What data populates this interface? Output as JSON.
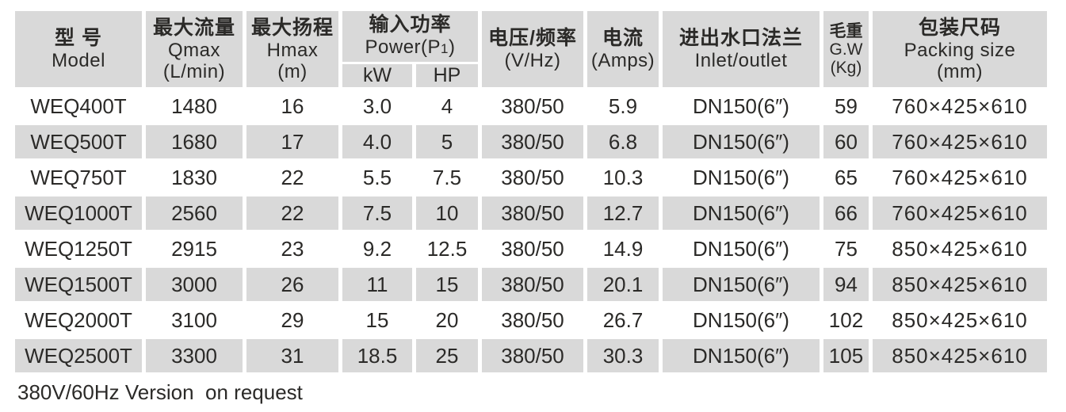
{
  "page": {
    "background_color": "#ffffff",
    "stripe_color": "#d9d9d9",
    "text_color": "#2b2a28"
  },
  "table": {
    "header": {
      "model": {
        "zh": "型 号",
        "en": "Model"
      },
      "qmax": {
        "zh": "最大流量",
        "en": "Qmax",
        "unit": "(L/min)"
      },
      "hmax": {
        "zh": "最大扬程",
        "en": "Hmax",
        "unit": "(m)"
      },
      "power": {
        "zh": "输入功率",
        "en_prefix": "Power(P",
        "en_sub": "1",
        "en_suffix": ")",
        "kw": "kW",
        "hp": "HP"
      },
      "voltage": {
        "zh": "电压/频率",
        "unit": "(V/Hz)"
      },
      "current": {
        "zh": "电流",
        "unit": "(Amps)"
      },
      "inlet": {
        "zh": "进出水口法兰",
        "en": "Inlet/outlet"
      },
      "gw": {
        "zh": "毛重",
        "en": "G.W",
        "unit": "(Kg)"
      },
      "packing": {
        "zh": "包装尺码",
        "en": "Packing size",
        "unit": "(mm)"
      }
    },
    "rows": [
      {
        "model": "WEQ400T",
        "qmax": "1480",
        "hmax": "16",
        "kw": "3.0",
        "hp": "4",
        "vhz": "380/50",
        "amps": "5.9",
        "inlet": "DN150(6″)",
        "gw": "59",
        "packing": "760×425×610"
      },
      {
        "model": "WEQ500T",
        "qmax": "1680",
        "hmax": "17",
        "kw": "4.0",
        "hp": "5",
        "vhz": "380/50",
        "amps": "6.8",
        "inlet": "DN150(6″)",
        "gw": "60",
        "packing": "760×425×610"
      },
      {
        "model": "WEQ750T",
        "qmax": "1830",
        "hmax": "22",
        "kw": "5.5",
        "hp": "7.5",
        "vhz": "380/50",
        "amps": "10.3",
        "inlet": "DN150(6″)",
        "gw": "65",
        "packing": "760×425×610"
      },
      {
        "model": "WEQ1000T",
        "qmax": "2560",
        "hmax": "22",
        "kw": "7.5",
        "hp": "10",
        "vhz": "380/50",
        "amps": "12.7",
        "inlet": "DN150(6″)",
        "gw": "66",
        "packing": "760×425×610"
      },
      {
        "model": "WEQ1250T",
        "qmax": "2915",
        "hmax": "23",
        "kw": "9.2",
        "hp": "12.5",
        "vhz": "380/50",
        "amps": "14.9",
        "inlet": "DN150(6″)",
        "gw": "75",
        "packing": "850×425×610"
      },
      {
        "model": "WEQ1500T",
        "qmax": "3000",
        "hmax": "26",
        "kw": "11",
        "hp": "15",
        "vhz": "380/50",
        "amps": "20.1",
        "inlet": "DN150(6″)",
        "gw": "94",
        "packing": "850×425×610"
      },
      {
        "model": "WEQ2000T",
        "qmax": "3100",
        "hmax": "29",
        "kw": "15",
        "hp": "20",
        "vhz": "380/50",
        "amps": "26.7",
        "inlet": "DN150(6″)",
        "gw": "102",
        "packing": "850×425×610"
      },
      {
        "model": "WEQ2500T",
        "qmax": "3300",
        "hmax": "31",
        "kw": "18.5",
        "hp": "25",
        "vhz": "380/50",
        "amps": "30.3",
        "inlet": "DN150(6″)",
        "gw": "105",
        "packing": "850×425×610"
      }
    ]
  },
  "footer": {
    "note": "380V/60Hz Version  on request"
  }
}
